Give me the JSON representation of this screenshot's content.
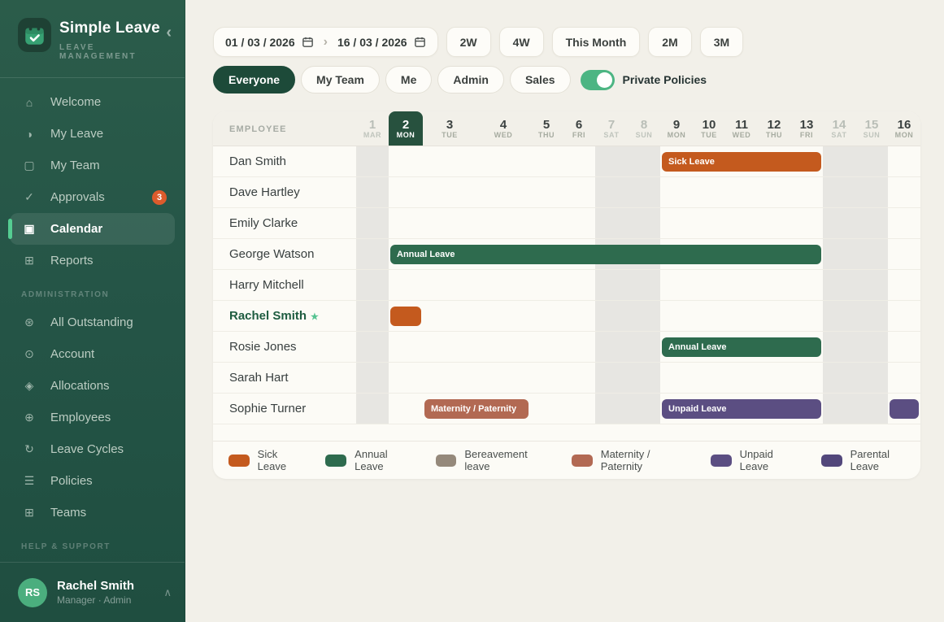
{
  "app": {
    "name": "Simple Leave",
    "tagline": "LEAVE MANAGEMENT"
  },
  "icons": {
    "home": "⌂",
    "half-circle": "◑",
    "square": "▢",
    "check": "✓",
    "calendar": "▣",
    "grid": "⊞",
    "asterisk-circle": "⊛",
    "dot-circle": "⊙",
    "diamond": "◈",
    "globe": "⊕",
    "cycle": "↻",
    "menu-lines": "☰",
    "star": "★",
    "chevron-left": "‹",
    "chevron-right": "›",
    "chevron-up": "∧"
  },
  "sidebar": {
    "items": [
      {
        "type": "item",
        "icon": "home",
        "label": "Welcome"
      },
      {
        "type": "item",
        "icon": "half-circle",
        "label": "My Leave"
      },
      {
        "type": "item",
        "icon": "square",
        "label": "My Team"
      },
      {
        "type": "item",
        "icon": "check",
        "label": "Approvals",
        "badge": "3"
      },
      {
        "type": "item",
        "icon": "calendar",
        "label": "Calendar",
        "active": true
      },
      {
        "type": "item",
        "icon": "grid",
        "label": "Reports"
      },
      {
        "type": "section",
        "label": "ADMINISTRATION"
      },
      {
        "type": "item",
        "icon": "asterisk-circle",
        "label": "All Outstanding"
      },
      {
        "type": "item",
        "icon": "dot-circle",
        "label": "Account"
      },
      {
        "type": "item",
        "icon": "diamond",
        "label": "Allocations"
      },
      {
        "type": "item",
        "icon": "globe",
        "label": "Employees"
      },
      {
        "type": "item",
        "icon": "cycle",
        "label": "Leave Cycles"
      },
      {
        "type": "item",
        "icon": "menu-lines",
        "label": "Policies"
      },
      {
        "type": "item",
        "icon": "grid",
        "label": "Teams"
      },
      {
        "type": "section",
        "label": "HELP & SUPPORT"
      }
    ],
    "profile": {
      "initials": "RS",
      "name": "Rachel Smith",
      "role": "Manager · Admin"
    }
  },
  "toolbar": {
    "date_from": "01 / 03 / 2026",
    "date_to": "16 / 03 / 2026",
    "range_buttons": [
      "2W",
      "4W",
      "This Month",
      "2M",
      "3M"
    ]
  },
  "filters": {
    "pills": [
      {
        "label": "Everyone",
        "active": true
      },
      {
        "label": "My Team"
      },
      {
        "label": "Me"
      },
      {
        "label": "Admin"
      },
      {
        "label": "Sales"
      }
    ],
    "toggle_label": "Private Policies",
    "toggle_on": true
  },
  "calendar": {
    "employee_header": "EMPLOYEE",
    "days": [
      {
        "num": "1",
        "dow": "MAR",
        "weekend": true
      },
      {
        "num": "2",
        "dow": "MON",
        "today": true
      },
      {
        "num": "3",
        "dow": "TUE"
      },
      {
        "num": "4",
        "dow": "WED"
      },
      {
        "num": "5",
        "dow": "THU"
      },
      {
        "num": "6",
        "dow": "FRI"
      },
      {
        "num": "7",
        "dow": "SAT",
        "weekend": true
      },
      {
        "num": "8",
        "dow": "SUN",
        "weekend": true
      },
      {
        "num": "9",
        "dow": "MON"
      },
      {
        "num": "10",
        "dow": "TUE"
      },
      {
        "num": "11",
        "dow": "WED"
      },
      {
        "num": "12",
        "dow": "THU"
      },
      {
        "num": "13",
        "dow": "FRI"
      },
      {
        "num": "14",
        "dow": "SAT",
        "weekend": true
      },
      {
        "num": "15",
        "dow": "SUN",
        "weekend": true
      },
      {
        "num": "16",
        "dow": "MON"
      }
    ],
    "employees": [
      {
        "name": "Dan Smith",
        "bars": [
          {
            "type": "sick",
            "label": "Sick Leave",
            "start": 9,
            "end": 13
          }
        ]
      },
      {
        "name": "Dave Hartley",
        "bars": []
      },
      {
        "name": "Emily Clarke",
        "bars": []
      },
      {
        "name": "George Watson",
        "bars": [
          {
            "type": "annual",
            "label": "Annual Leave",
            "start": 2,
            "end": 13
          }
        ]
      },
      {
        "name": "Harry Mitchell",
        "bars": []
      },
      {
        "name": "Rachel Smith",
        "me": true,
        "bars": [
          {
            "type": "sick",
            "label": "",
            "start": 2,
            "end": 2
          }
        ]
      },
      {
        "name": "Rosie Jones",
        "bars": [
          {
            "type": "annual",
            "label": "Annual Leave",
            "start": 9,
            "end": 13
          }
        ]
      },
      {
        "name": "Sarah Hart",
        "bars": []
      },
      {
        "name": "Sophie Turner",
        "bars": [
          {
            "type": "maternity",
            "label": "Maternity / Paternity",
            "start": 3,
            "end": 4
          },
          {
            "type": "unpaid",
            "label": "Unpaid Leave",
            "start": 9,
            "end": 13
          },
          {
            "type": "unpaid",
            "label": "",
            "start": 16,
            "end": 16
          }
        ]
      }
    ]
  },
  "legend": {
    "items": [
      {
        "label": "Sick Leave",
        "type": "sick"
      },
      {
        "label": "Annual Leave",
        "type": "annual"
      },
      {
        "label": "Bereavement leave",
        "type": "bereavement"
      },
      {
        "label": "Maternity / Paternity",
        "type": "maternity"
      },
      {
        "label": "Unpaid Leave",
        "type": "unpaid"
      },
      {
        "label": "Parental Leave",
        "type": "parental"
      }
    ]
  },
  "colors": {
    "leave": {
      "sick": "#C45A1E",
      "annual": "#2E6B4E",
      "bereavement": "#95897B",
      "maternity": "#B26953",
      "unpaid": "#5B4E82",
      "parental": "#52477B"
    },
    "today_header": "#27513E",
    "active_pill": "#1D4A39",
    "toggle_on": "#4CB583",
    "badge": "#DC5B2C",
    "page_bg": "#F2F0E9",
    "card_bg": "#FCFBF6",
    "weekend_shade": "#E7E6E2"
  }
}
